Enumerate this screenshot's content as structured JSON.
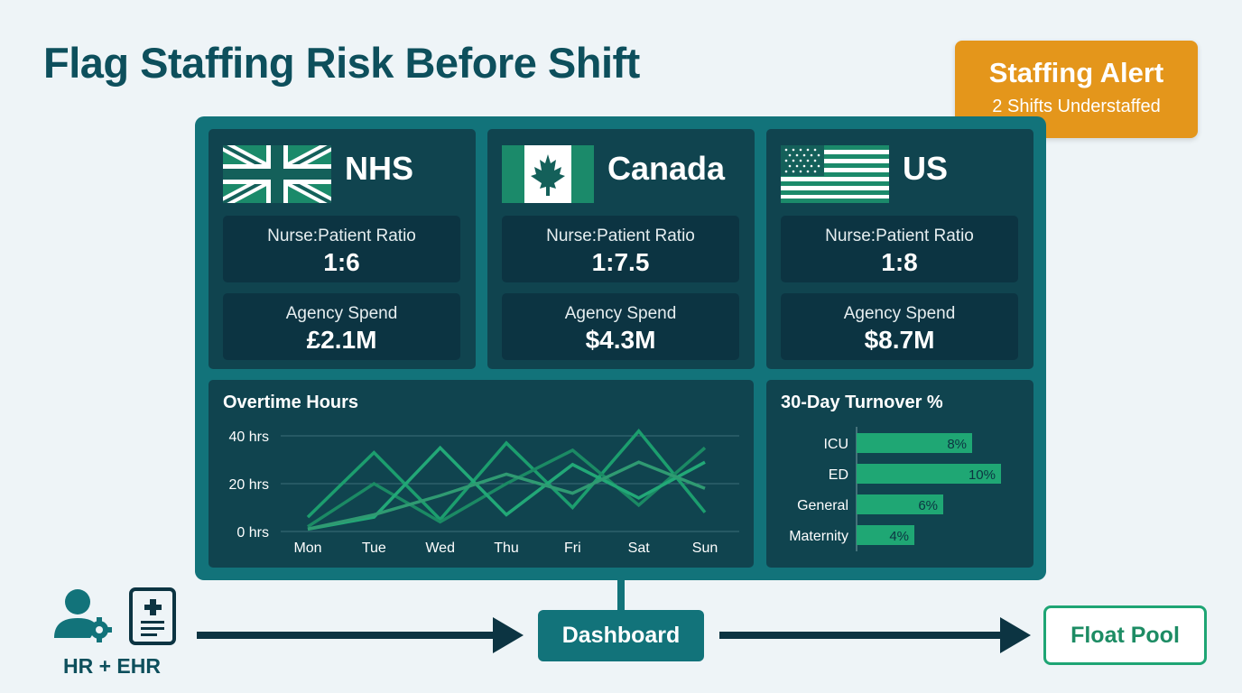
{
  "title": "Flag Staffing Risk Before Shift",
  "alert": {
    "title": "Staffing Alert",
    "subtitle": "2 Shifts Understaffed"
  },
  "regions": [
    {
      "name": "NHS",
      "flag": "uk-flag-icon",
      "ratio_label": "Nurse:Patient Ratio",
      "ratio": "1:6",
      "spend_label": "Agency Spend",
      "spend": "£2.1M"
    },
    {
      "name": "Canada",
      "flag": "canada-flag-icon",
      "ratio_label": "Nurse:Patient Ratio",
      "ratio": "1:7.5",
      "spend_label": "Agency Spend",
      "spend": "$4.3M"
    },
    {
      "name": "US",
      "flag": "us-flag-icon",
      "ratio_label": "Nurse:Patient Ratio",
      "ratio": "1:8",
      "spend_label": "Agency Spend",
      "spend": "$8.7M"
    }
  ],
  "chart_data": [
    {
      "type": "line",
      "title": "Overtime Hours",
      "x": [
        "Mon",
        "Tue",
        "Wed",
        "Thu",
        "Fri",
        "Sat",
        "Sun"
      ],
      "yticks": [
        "0 hrs",
        "20 hrs",
        "40 hrs"
      ],
      "ylim": [
        0,
        40
      ],
      "grid": true,
      "series": [
        {
          "values": [
            6,
            33,
            5,
            37,
            10,
            42,
            8
          ],
          "color": "#1c9e6e"
        },
        {
          "values": [
            2,
            20,
            4,
            20,
            34,
            11,
            35
          ],
          "color": "#1b8a64"
        },
        {
          "values": [
            1,
            6,
            35,
            7,
            28,
            14,
            29
          ],
          "color": "#22a877"
        },
        {
          "values": [
            1,
            7,
            15,
            24,
            16,
            29,
            18
          ],
          "color": "#2f9a72"
        }
      ]
    },
    {
      "type": "bar",
      "title": "30-Day Turnover %",
      "categories": [
        "ICU",
        "ED",
        "General",
        "Maternity"
      ],
      "values": [
        8,
        10,
        6,
        4
      ],
      "labels": [
        "8%",
        "10%",
        "6%",
        "4%"
      ],
      "color": "#1fa774"
    }
  ],
  "flow": {
    "source_label": "HR + EHR",
    "source_icons": [
      "user-gear-icon",
      "medical-record-icon"
    ],
    "dashboard_label": "Dashboard",
    "destination_label": "Float Pool"
  },
  "colors": {
    "title": "#0d4f5c",
    "board": "#12737a",
    "card": "#10444f",
    "metric": "#0c3442",
    "alert": "#e4961b",
    "accent_green": "#1ea574"
  }
}
